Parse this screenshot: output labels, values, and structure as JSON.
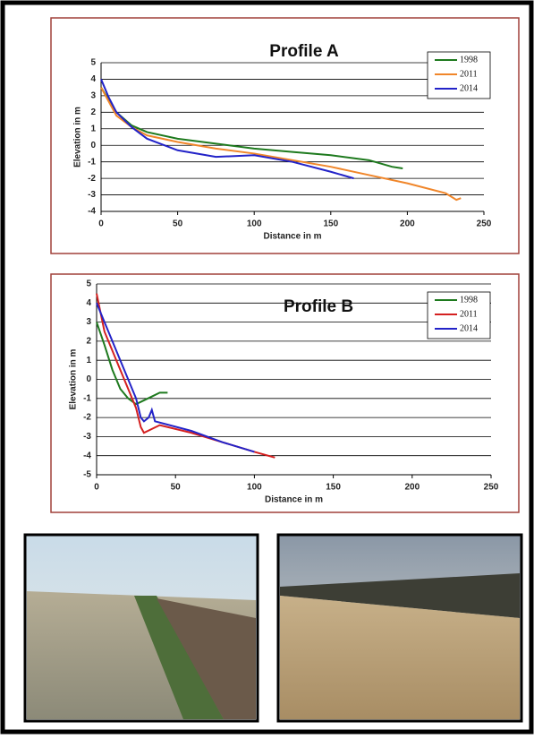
{
  "chart_data": [
    {
      "type": "line",
      "title": "Profile A",
      "x_label": "Distance in m",
      "y_label": "Elevation in m",
      "xlim": [
        0,
        250
      ],
      "xticks": [
        0,
        50,
        100,
        150,
        200,
        250
      ],
      "ylim": [
        -4,
        5
      ],
      "yticks": [
        -4,
        -3,
        -2,
        -1,
        0,
        1,
        2,
        3,
        4,
        5
      ],
      "grid": true,
      "legend": "upper right",
      "series": [
        {
          "name": "1998",
          "color": "#1e7a1e",
          "x": [
            0,
            10,
            20,
            30,
            50,
            75,
            100,
            125,
            150,
            175,
            190,
            197
          ],
          "values": [
            3.5,
            2,
            1.2,
            0.8,
            0.4,
            0.1,
            -0.2,
            -0.4,
            -0.6,
            -0.9,
            -1.3,
            -1.4
          ]
        },
        {
          "name": "2011",
          "color": "#f0862a",
          "x": [
            0,
            10,
            20,
            30,
            50,
            75,
            100,
            125,
            150,
            175,
            200,
            225,
            232,
            235
          ],
          "values": [
            3.5,
            1.8,
            1.1,
            0.6,
            0.2,
            -0.2,
            -0.5,
            -0.9,
            -1.3,
            -1.8,
            -2.3,
            -2.9,
            -3.3,
            -3.2
          ]
        },
        {
          "name": "2014",
          "color": "#2323c8",
          "x": [
            0,
            5,
            10,
            20,
            30,
            50,
            75,
            100,
            125,
            150,
            165
          ],
          "values": [
            4,
            2.9,
            2,
            1.1,
            0.4,
            -0.3,
            -0.7,
            -0.6,
            -1,
            -1.6,
            -2
          ]
        }
      ]
    },
    {
      "type": "line",
      "title": "Profile B",
      "x_label": "Distance in m",
      "y_label": "Elevation in m",
      "xlim": [
        0,
        250
      ],
      "xticks": [
        0,
        50,
        100,
        150,
        200,
        250
      ],
      "ylim": [
        -5,
        5
      ],
      "yticks": [
        -5,
        -4,
        -3,
        -2,
        -1,
        0,
        1,
        2,
        3,
        4,
        5
      ],
      "grid": true,
      "legend": "upper right",
      "series": [
        {
          "name": "1998",
          "color": "#1e7a1e",
          "x": [
            0,
            5,
            10,
            15,
            20,
            25,
            30,
            35,
            40,
            45
          ],
          "values": [
            3,
            1.8,
            0.5,
            -0.5,
            -1,
            -1.3,
            -1.1,
            -0.9,
            -0.7,
            -0.7
          ]
        },
        {
          "name": "2011",
          "color": "#d42020",
          "x": [
            0,
            5,
            10,
            15,
            20,
            25,
            28,
            30,
            40,
            60,
            80,
            100,
            113
          ],
          "values": [
            4.5,
            2.5,
            1.5,
            0.5,
            -0.5,
            -1.5,
            -2.5,
            -2.8,
            -2.4,
            -2.8,
            -3.3,
            -3.8,
            -4.1
          ]
        },
        {
          "name": "2014",
          "color": "#2323c8",
          "x": [
            0,
            5,
            10,
            15,
            20,
            25,
            28,
            30,
            33,
            35,
            37,
            60,
            80,
            100
          ],
          "values": [
            4,
            3,
            2,
            1,
            0,
            -1,
            -2,
            -2.2,
            -2,
            -1.6,
            -2.2,
            -2.7,
            -3.3,
            -3.8
          ]
        }
      ]
    }
  ]
}
